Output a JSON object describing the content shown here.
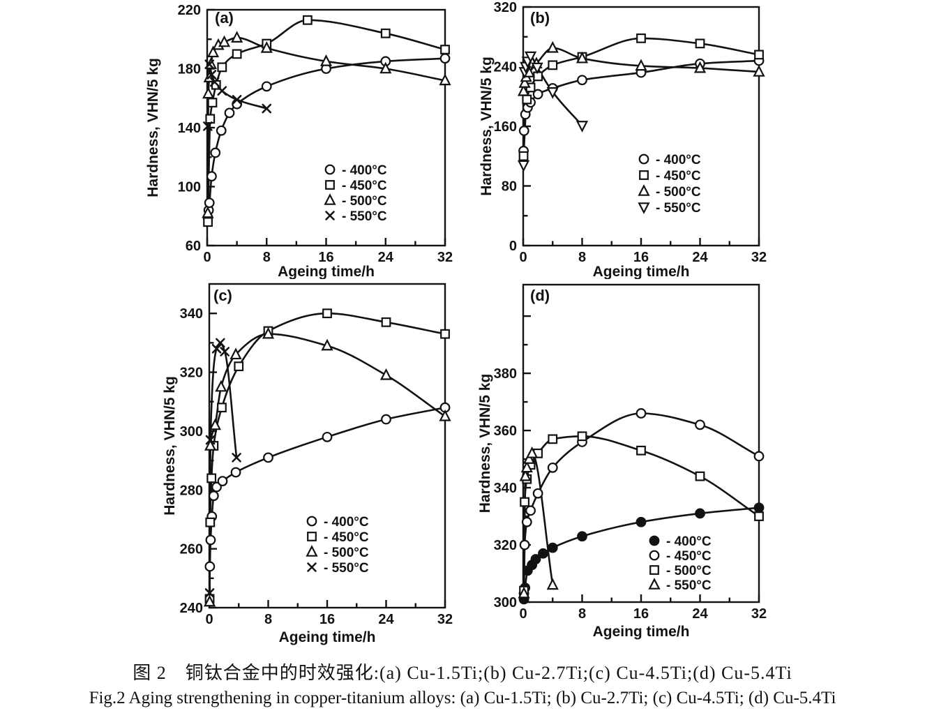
{
  "figure": {
    "caption_zh": "图 2　铜钛合金中的时效强化:(a) Cu-1.5Ti;(b) Cu-2.7Ti;(c) Cu-4.5Ti;(d) Cu-5.4Ti",
    "caption_en": "Fig.2 Aging strengthening in copper-titanium alloys: (a) Cu-1.5Ti; (b) Cu-2.7Ti; (c) Cu-4.5Ti; (d) Cu-5.4Ti"
  },
  "chart_data": [
    {
      "id": "a",
      "type": "line",
      "panel_label": "(a)",
      "alloy": "Cu-1.5Ti",
      "xlabel": "Ageing time/h",
      "ylabel": "Hardness, VHN/5 kg",
      "xlim": [
        0,
        32
      ],
      "ylim": [
        60,
        220
      ],
      "xticks": [
        0,
        8,
        16,
        24,
        32
      ],
      "xminor": [
        4,
        12,
        20,
        28
      ],
      "yticks": [
        60,
        100,
        140,
        180,
        220
      ],
      "yminor": [
        80,
        120,
        160,
        200
      ],
      "yticks_unlabeled": [],
      "grid": false,
      "legend_loc": "center-right",
      "series": [
        {
          "name": "400°C",
          "marker": "circle",
          "filled": false,
          "points": [
            [
              0.1,
              79
            ],
            [
              0.2,
              84
            ],
            [
              0.3,
              89
            ],
            [
              0.6,
              107
            ],
            [
              1.1,
              123
            ],
            [
              1.9,
              138
            ],
            [
              3,
              150
            ],
            [
              4,
              156
            ],
            [
              8,
              168
            ],
            [
              16,
              180
            ],
            [
              24,
              185
            ],
            [
              32,
              187
            ]
          ]
        },
        {
          "name": "450°C",
          "marker": "square",
          "filled": false,
          "points": [
            [
              0.1,
              76
            ],
            [
              0.4,
              146
            ],
            [
              0.7,
              157
            ],
            [
              1.2,
              169
            ],
            [
              2,
              181
            ],
            [
              4,
              190
            ],
            [
              8,
              197
            ],
            [
              13.5,
              213
            ],
            [
              24,
              204
            ],
            [
              32,
              193
            ]
          ]
        },
        {
          "name": "500°C",
          "marker": "triangle",
          "filled": false,
          "points": [
            [
              0.08,
              82
            ],
            [
              0.15,
              163
            ],
            [
              0.3,
              174
            ],
            [
              0.5,
              183
            ],
            [
              0.8,
              191
            ],
            [
              1.5,
              196
            ],
            [
              2.3,
              198
            ],
            [
              4,
              201
            ],
            [
              8,
              194
            ],
            [
              16,
              185
            ],
            [
              24,
              180
            ],
            [
              32,
              172
            ]
          ]
        },
        {
          "name": "550°C",
          "marker": "x",
          "filled": false,
          "points": [
            [
              0.08,
              141
            ],
            [
              0.3,
              183
            ],
            [
              0.6,
              176
            ],
            [
              1,
              171
            ],
            [
              2,
              165
            ],
            [
              4,
              159
            ],
            [
              8,
              153
            ]
          ]
        }
      ]
    },
    {
      "id": "b",
      "type": "line",
      "panel_label": "(b)",
      "alloy": "Cu-2.7Ti",
      "xlabel": "Ageing time/h",
      "ylabel": "Hardness, VHN/5 kg",
      "xlim": [
        0,
        32
      ],
      "ylim": [
        0,
        320
      ],
      "xticks": [
        0,
        8,
        16,
        24,
        32
      ],
      "xminor": [
        4,
        12,
        20,
        28
      ],
      "yticks": [
        0,
        80,
        160,
        240,
        320
      ],
      "yminor": [
        40,
        120,
        200,
        280
      ],
      "yticks_unlabeled": [],
      "grid": false,
      "legend_loc": "center-right",
      "series": [
        {
          "name": "400°C",
          "marker": "circle",
          "filled": false,
          "points": [
            [
              0.05,
              127
            ],
            [
              0.12,
              154
            ],
            [
              0.3,
              176
            ],
            [
              0.6,
              185
            ],
            [
              1,
              192
            ],
            [
              2,
              203
            ],
            [
              4,
              211
            ],
            [
              8,
              222
            ],
            [
              16,
              232
            ],
            [
              24,
              244
            ],
            [
              32,
              248
            ]
          ]
        },
        {
          "name": "450°C",
          "marker": "square",
          "filled": false,
          "points": [
            [
              0.05,
              120
            ],
            [
              0.5,
              196
            ],
            [
              1,
              212
            ],
            [
              2,
              227
            ],
            [
              4,
              242
            ],
            [
              8,
              253
            ],
            [
              16,
              278
            ],
            [
              24,
              271
            ],
            [
              32,
              256
            ]
          ]
        },
        {
          "name": "500°C",
          "marker": "triangle",
          "filled": false,
          "points": [
            [
              0.05,
              207
            ],
            [
              0.2,
              218
            ],
            [
              0.4,
              226
            ],
            [
              0.8,
              232
            ],
            [
              1.8,
              244
            ],
            [
              4,
              265
            ],
            [
              8,
              251
            ],
            [
              16,
              241
            ],
            [
              24,
              238
            ],
            [
              32,
              233
            ]
          ]
        },
        {
          "name": "550°C",
          "marker": "triangle-down",
          "filled": false,
          "points": [
            [
              0.05,
              108
            ],
            [
              0.2,
              233
            ],
            [
              0.35,
              240
            ],
            [
              0.6,
              247
            ],
            [
              1,
              254
            ],
            [
              1.9,
              239
            ],
            [
              4,
              206
            ],
            [
              8,
              161
            ]
          ]
        }
      ]
    },
    {
      "id": "c",
      "type": "line",
      "panel_label": "(c)",
      "alloy": "Cu-4.5Ti",
      "xlabel": "Ageing time/h",
      "ylabel": "Hardness, VHN/5 kg",
      "xlim": [
        0,
        32
      ],
      "ylim": [
        240,
        350
      ],
      "xticks": [
        0,
        8,
        16,
        24,
        32
      ],
      "xminor": [
        4,
        12,
        20,
        28
      ],
      "yticks": [
        240,
        260,
        280,
        300,
        320,
        340
      ],
      "yminor": [
        250,
        270,
        290,
        310,
        330
      ],
      "yticks_unlabeled": [],
      "grid": false,
      "legend_loc": "lower-center",
      "series": [
        {
          "name": "400°C",
          "marker": "circle",
          "filled": false,
          "points": [
            [
              0.08,
              254
            ],
            [
              0.18,
              263
            ],
            [
              0.35,
              271
            ],
            [
              0.6,
              278
            ],
            [
              1,
              281
            ],
            [
              1.8,
              283
            ],
            [
              3.6,
              286
            ],
            [
              8,
              291
            ],
            [
              16,
              298
            ],
            [
              24,
              304
            ],
            [
              32,
              308
            ]
          ]
        },
        {
          "name": "450°C",
          "marker": "square",
          "filled": false,
          "points": [
            [
              0.05,
              243
            ],
            [
              0.12,
              269
            ],
            [
              0.3,
              284
            ],
            [
              0.6,
              295
            ],
            [
              1.7,
              308
            ],
            [
              4,
              322
            ],
            [
              8,
              334
            ],
            [
              16,
              340
            ],
            [
              24,
              337
            ],
            [
              32,
              333
            ]
          ]
        },
        {
          "name": "500°C",
          "marker": "triangle",
          "filled": false,
          "points": [
            [
              0.05,
              242
            ],
            [
              0.15,
              295
            ],
            [
              0.8,
              302
            ],
            [
              1.6,
              315
            ],
            [
              3.6,
              326
            ],
            [
              8,
              333
            ],
            [
              16,
              329
            ],
            [
              24,
              319
            ],
            [
              32,
              305
            ]
          ]
        },
        {
          "name": "550°C",
          "marker": "x",
          "filled": false,
          "points": [
            [
              0.05,
              245
            ],
            [
              0.15,
              297
            ],
            [
              1,
              328
            ],
            [
              1.5,
              330
            ],
            [
              2.1,
              327
            ],
            [
              3.7,
              291
            ]
          ]
        }
      ]
    },
    {
      "id": "d",
      "type": "line",
      "panel_label": "(d)",
      "alloy": "Cu-5.4Ti",
      "xlabel": "Ageing time/h",
      "ylabel": "Hardness, VHN/5 kg",
      "xlim": [
        0,
        32
      ],
      "ylim": [
        300,
        411
      ],
      "xticks": [
        0,
        8,
        16,
        24,
        32
      ],
      "xminor": [
        4,
        12,
        20,
        28
      ],
      "yticks": [
        300,
        320,
        340,
        360,
        380
      ],
      "yminor": [
        310,
        330,
        350,
        370,
        390
      ],
      "yticks_unlabeled": [
        400
      ],
      "grid": false,
      "legend_loc": "lower-right",
      "series": [
        {
          "name": "400°C",
          "marker": "circle",
          "filled": true,
          "points": [
            [
              0.1,
              301
            ],
            [
              0.25,
              305
            ],
            [
              0.6,
              311
            ],
            [
              1.2,
              313
            ],
            [
              1.7,
              315
            ],
            [
              2.7,
              317
            ],
            [
              4,
              319
            ],
            [
              8,
              323
            ],
            [
              16,
              328
            ],
            [
              24,
              331
            ],
            [
              32,
              333
            ]
          ]
        },
        {
          "name": "450°C",
          "marker": "circle",
          "filled": false,
          "points": [
            [
              0.1,
              303
            ],
            [
              0.2,
              320
            ],
            [
              0.5,
              328
            ],
            [
              1,
              332
            ],
            [
              2,
              338
            ],
            [
              4,
              347
            ],
            [
              8,
              356
            ],
            [
              16,
              366
            ],
            [
              24,
              362
            ],
            [
              32,
              351
            ]
          ]
        },
        {
          "name": "500°C",
          "marker": "square",
          "filled": false,
          "points": [
            [
              0.1,
              304
            ],
            [
              0.2,
              335
            ],
            [
              0.5,
              343
            ],
            [
              1,
              348
            ],
            [
              2,
              352
            ],
            [
              4,
              357
            ],
            [
              8,
              358
            ],
            [
              16,
              353
            ],
            [
              24,
              344
            ],
            [
              32,
              330
            ]
          ]
        },
        {
          "name": "550°C",
          "marker": "triangle",
          "filled": false,
          "points": [
            [
              0.1,
              303
            ],
            [
              0.3,
              344
            ],
            [
              0.5,
              347
            ],
            [
              0.8,
              350
            ],
            [
              1.2,
              352
            ],
            [
              4,
              306
            ]
          ]
        }
      ]
    }
  ]
}
